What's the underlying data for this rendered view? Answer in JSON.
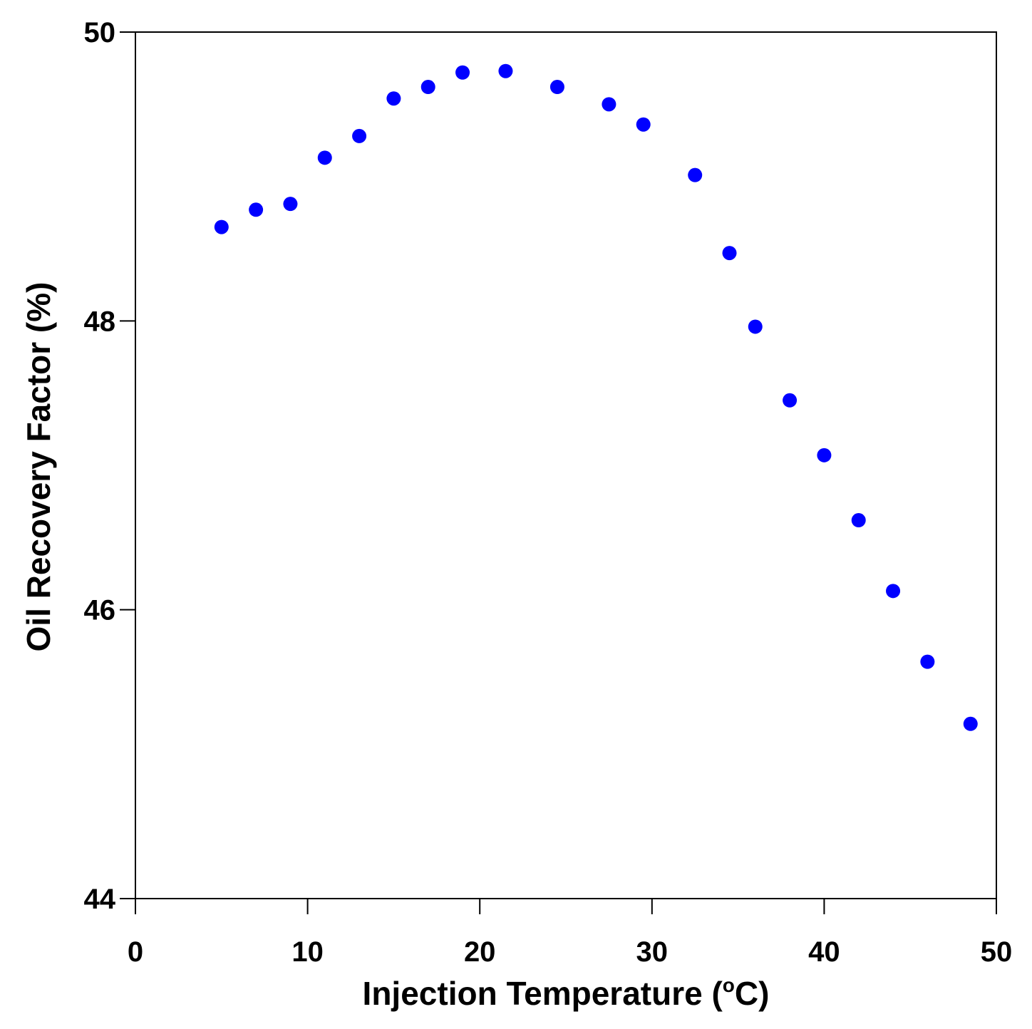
{
  "chart_data": {
    "type": "scatter",
    "title": "",
    "xlabel_main": "Injection Temperature (",
    "xlabel_deg": "o",
    "xlabel_tail": "C)",
    "ylabel": "Oil Recovery Factor (%)",
    "xlim": [
      0,
      50
    ],
    "ylim": [
      44,
      50
    ],
    "xticks": [
      0,
      10,
      20,
      30,
      40,
      50
    ],
    "yticks": [
      44,
      46,
      48,
      50
    ],
    "xtick_labels": [
      "0",
      "10",
      "20",
      "30",
      "40",
      "50"
    ],
    "ytick_labels": [
      "44",
      "46",
      "48",
      "50"
    ],
    "grid": false,
    "marker_color": "#0000ff",
    "series": [
      {
        "name": "Oil recovery factor",
        "x": [
          5,
          7,
          9,
          11,
          13,
          15,
          17,
          19,
          21.5,
          24.5,
          27.5,
          29.5,
          32.5,
          34.5,
          36,
          38,
          40,
          42,
          44,
          46,
          48.5
        ],
        "y": [
          48.65,
          48.77,
          48.81,
          49.13,
          49.28,
          49.54,
          49.62,
          49.72,
          49.73,
          49.62,
          49.5,
          49.36,
          49.01,
          48.47,
          47.96,
          47.45,
          47.07,
          46.62,
          46.13,
          45.64,
          45.21
        ]
      }
    ]
  }
}
